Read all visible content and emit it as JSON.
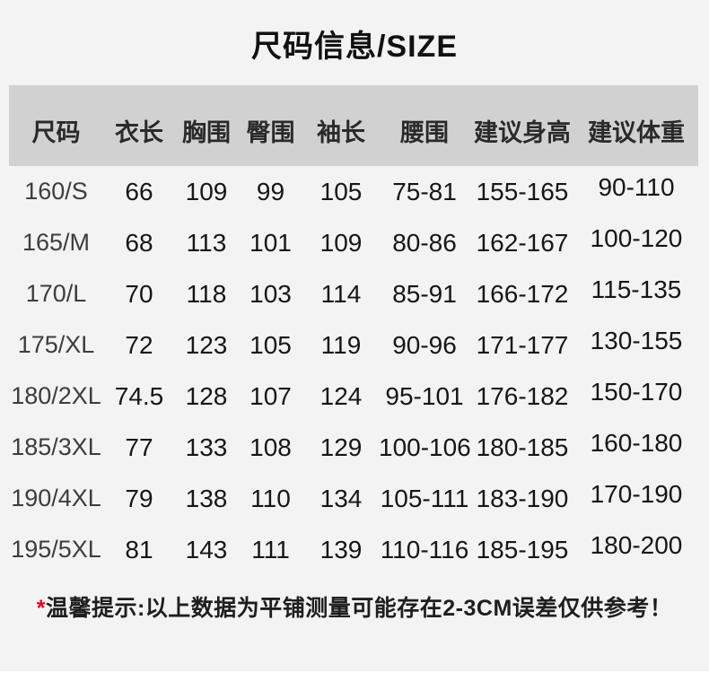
{
  "colors": {
    "page_background": "#f3f3f4",
    "header_row_background": "#d1d1d1",
    "note_asterisk_red": "#e60012"
  },
  "title": "尺码信息/SIZE",
  "table": {
    "headers": [
      "尺码",
      "衣长",
      "胸围",
      "臀围",
      "袖长",
      "腰围",
      "建议身高",
      "建议体重"
    ],
    "rows": [
      [
        "160/S",
        "66",
        "109",
        "99",
        "105",
        "75-81",
        "155-165",
        "90-110"
      ],
      [
        "165/M",
        "68",
        "113",
        "101",
        "109",
        "80-86",
        "162-167",
        "100-120"
      ],
      [
        "170/L",
        "70",
        "118",
        "103",
        "114",
        "85-91",
        "166-172",
        "115-135"
      ],
      [
        "175/XL",
        "72",
        "123",
        "105",
        "119",
        "90-96",
        "171-177",
        "130-155"
      ],
      [
        "180/2XL",
        "74.5",
        "128",
        "107",
        "124",
        "95-101",
        "176-182",
        "150-170"
      ],
      [
        "185/3XL",
        "77",
        "133",
        "108",
        "129",
        "100-106",
        "180-185",
        "160-180"
      ],
      [
        "190/4XL",
        "79",
        "138",
        "110",
        "134",
        "105-111",
        "183-190",
        "170-190"
      ],
      [
        "195/5XL",
        "81",
        "143",
        "111",
        "139",
        "110-116",
        "185-195",
        "180-200"
      ]
    ]
  },
  "note": {
    "asterisk": "*",
    "label": "温馨提示:",
    "text": "以上数据为平铺测量可能存在2-3CM误差仅供参考！"
  }
}
